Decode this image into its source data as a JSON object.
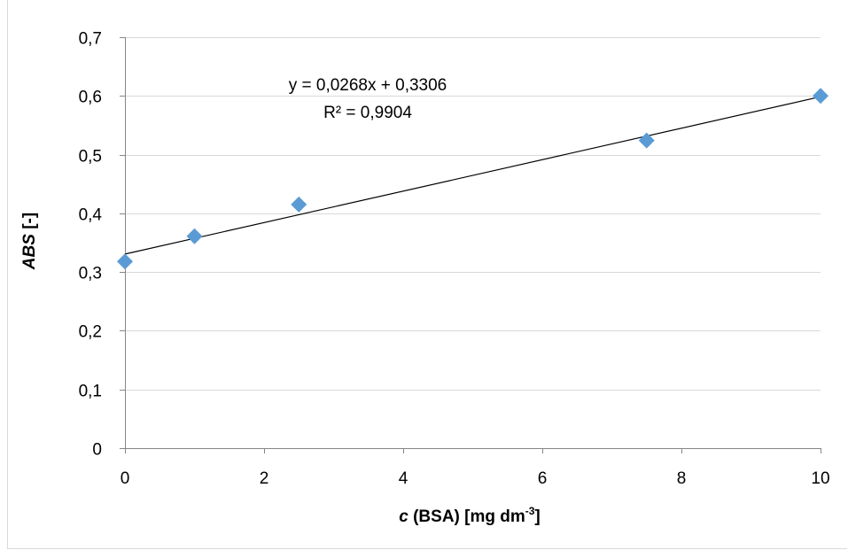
{
  "chart_data": {
    "type": "scatter",
    "title": "",
    "x": [
      0,
      1,
      2.5,
      7.5,
      10
    ],
    "y": [
      0.318,
      0.361,
      0.415,
      0.524,
      0.6
    ],
    "xlim": [
      0,
      10
    ],
    "ylim": [
      0,
      0.7
    ],
    "x_ticks": [
      0,
      2,
      4,
      6,
      8,
      10
    ],
    "y_ticks": [
      0,
      0.1,
      0.2,
      0.3,
      0.4,
      0.5,
      0.6,
      0.7
    ],
    "x_tick_labels": [
      "0",
      "2",
      "4",
      "6",
      "8",
      "10"
    ],
    "y_tick_labels": [
      "0",
      "0,1",
      "0,2",
      "0,3",
      "0,4",
      "0,5",
      "0,6",
      "0,7"
    ],
    "xlabel": {
      "italic": "c",
      "main": " (BSA) [mg dm",
      "sup": "-3",
      "close": "]"
    },
    "ylabel": {
      "italic": "ABS",
      "rest": " [-]"
    },
    "grid": "horizontal",
    "marker": "diamond",
    "marker_color": "#5b9bd5",
    "trendline": {
      "type": "linear",
      "slope": 0.0268,
      "intercept": 0.3306,
      "color": "#000000",
      "equation": "y = 0,0268x + 0,3306",
      "r_squared": "R² = 0,9904"
    }
  },
  "colors": {
    "gridline": "#d9d9d9",
    "axis": "#868686",
    "background": "#ffffff"
  }
}
